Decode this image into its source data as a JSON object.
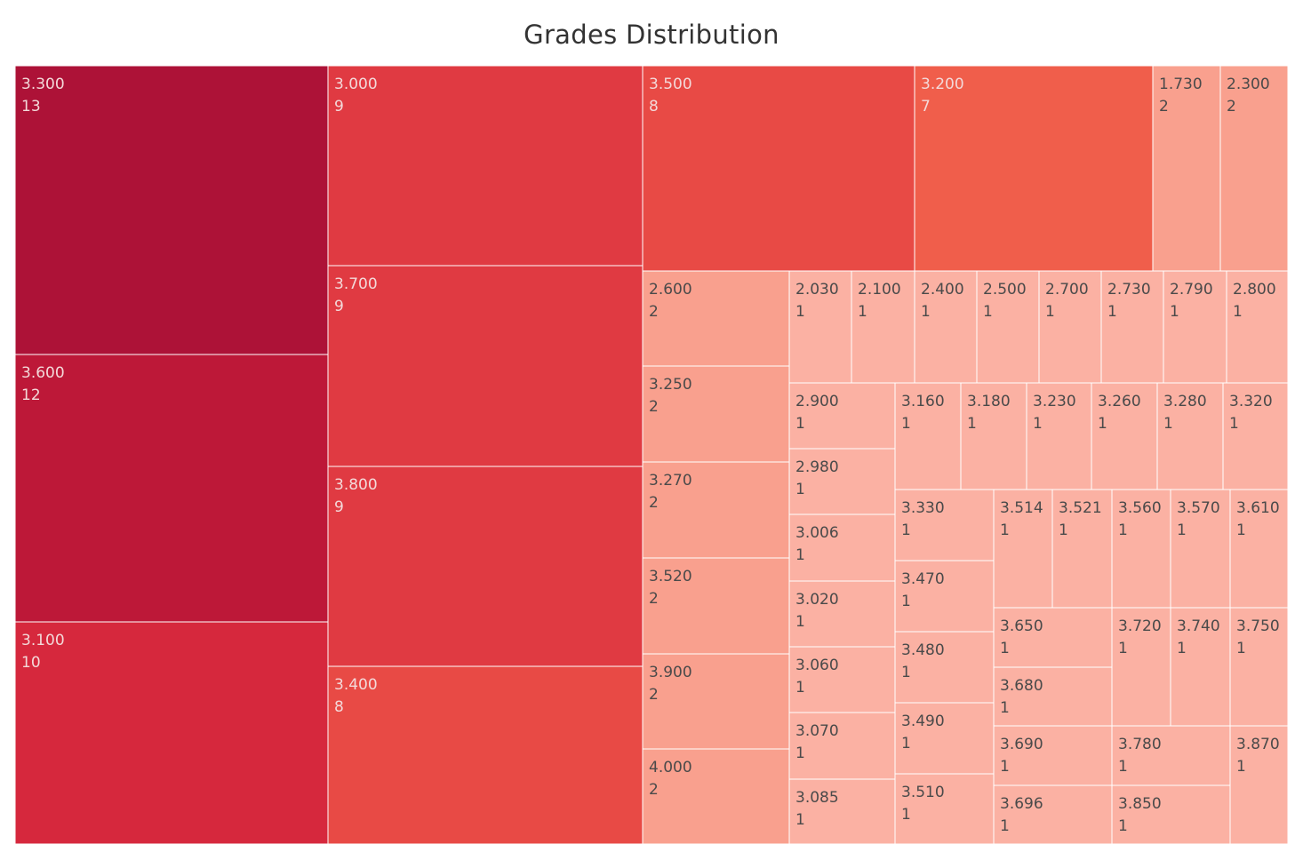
{
  "chart_data": {
    "type": "treemap",
    "title": "Grades Distribution",
    "color_scale": [
      "#fbb1a3",
      "#f9a08e",
      "#f05e4b",
      "#e84a45",
      "#e03a42",
      "#d6283d",
      "#bd1838",
      "#ad1237"
    ],
    "items": [
      {
        "label": "3.300",
        "count": 13
      },
      {
        "label": "3.600",
        "count": 12
      },
      {
        "label": "3.100",
        "count": 10
      },
      {
        "label": "3.000",
        "count": 9
      },
      {
        "label": "3.700",
        "count": 9
      },
      {
        "label": "3.800",
        "count": 9
      },
      {
        "label": "3.400",
        "count": 8
      },
      {
        "label": "3.500",
        "count": 8
      },
      {
        "label": "3.200",
        "count": 7
      },
      {
        "label": "1.730",
        "count": 2
      },
      {
        "label": "2.300",
        "count": 2
      },
      {
        "label": "2.600",
        "count": 2
      },
      {
        "label": "3.250",
        "count": 2
      },
      {
        "label": "3.270",
        "count": 2
      },
      {
        "label": "3.520",
        "count": 2
      },
      {
        "label": "3.900",
        "count": 2
      },
      {
        "label": "4.000",
        "count": 2
      },
      {
        "label": "2.030",
        "count": 1
      },
      {
        "label": "2.100",
        "count": 1
      },
      {
        "label": "2.400",
        "count": 1
      },
      {
        "label": "2.500",
        "count": 1
      },
      {
        "label": "2.700",
        "count": 1
      },
      {
        "label": "2.730",
        "count": 1
      },
      {
        "label": "2.790",
        "count": 1
      },
      {
        "label": "2.800",
        "count": 1
      },
      {
        "label": "2.900",
        "count": 1
      },
      {
        "label": "2.980",
        "count": 1
      },
      {
        "label": "3.006",
        "count": 1
      },
      {
        "label": "3.020",
        "count": 1
      },
      {
        "label": "3.060",
        "count": 1
      },
      {
        "label": "3.070",
        "count": 1
      },
      {
        "label": "3.085",
        "count": 1
      },
      {
        "label": "3.160",
        "count": 1
      },
      {
        "label": "3.180",
        "count": 1
      },
      {
        "label": "3.230",
        "count": 1
      },
      {
        "label": "3.260",
        "count": 1
      },
      {
        "label": "3.280",
        "count": 1
      },
      {
        "label": "3.320",
        "count": 1
      },
      {
        "label": "3.330",
        "count": 1
      },
      {
        "label": "3.470",
        "count": 1
      },
      {
        "label": "3.480",
        "count": 1
      },
      {
        "label": "3.490",
        "count": 1
      },
      {
        "label": "3.510",
        "count": 1
      },
      {
        "label": "3.514",
        "count": 1
      },
      {
        "label": "3.521",
        "count": 1
      },
      {
        "label": "3.560",
        "count": 1
      },
      {
        "label": "3.570",
        "count": 1
      },
      {
        "label": "3.610",
        "count": 1
      },
      {
        "label": "3.650",
        "count": 1
      },
      {
        "label": "3.680",
        "count": 1
      },
      {
        "label": "3.690",
        "count": 1
      },
      {
        "label": "3.696",
        "count": 1
      },
      {
        "label": "3.720",
        "count": 1
      },
      {
        "label": "3.740",
        "count": 1
      },
      {
        "label": "3.750",
        "count": 1
      },
      {
        "label": "3.780",
        "count": 1
      },
      {
        "label": "3.850",
        "count": 1
      },
      {
        "label": "3.870",
        "count": 1
      }
    ]
  }
}
